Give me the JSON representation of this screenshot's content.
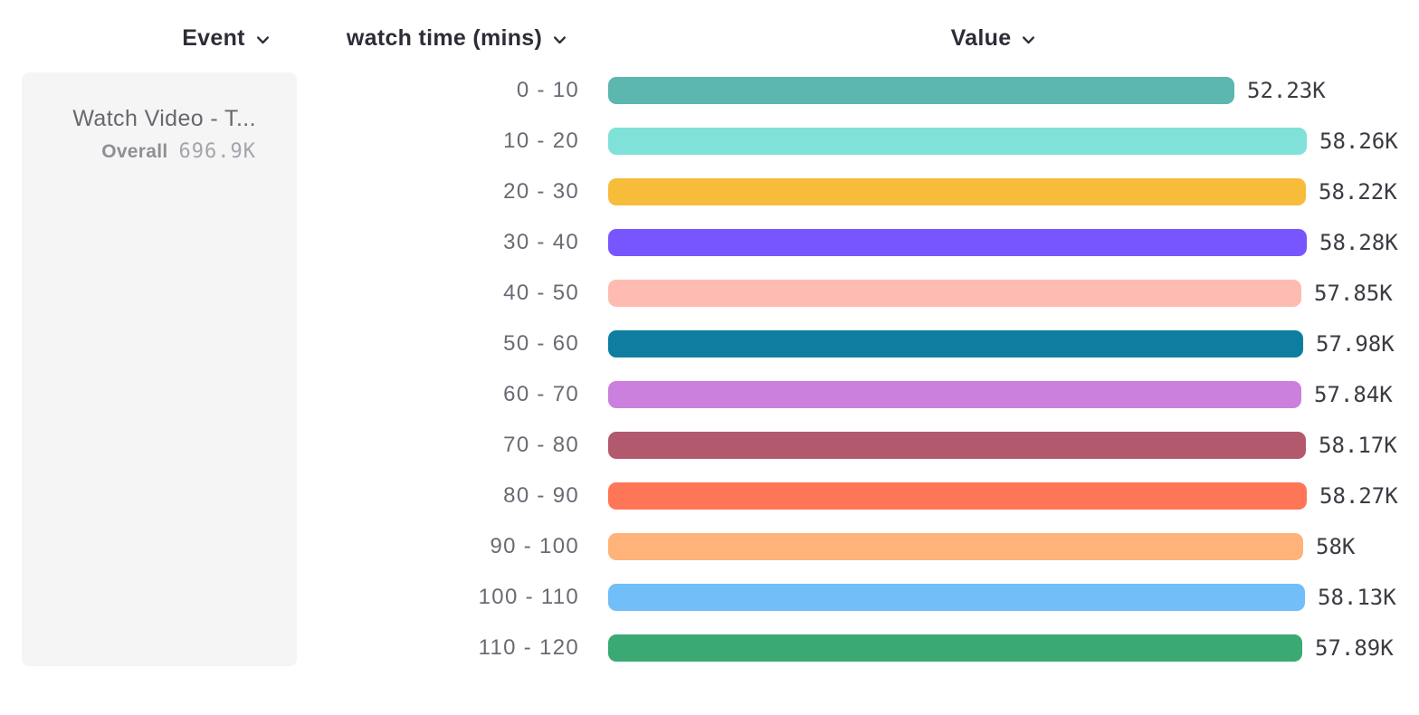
{
  "header": {
    "event": {
      "label": "Event"
    },
    "breakdown": {
      "label": "watch time (mins)"
    },
    "value": {
      "label": "Value"
    }
  },
  "event_panel": {
    "event_name": "Watch Video - T...",
    "overall_label": "Overall",
    "overall_value": "696.9K"
  },
  "chart_data": {
    "type": "bar",
    "orientation": "horizontal",
    "title": "",
    "xlabel": "Value",
    "ylabel": "watch time (mins)",
    "grid": false,
    "legend_position": "none",
    "categories": [
      "0 - 10",
      "10 - 20",
      "20 - 30",
      "30 - 40",
      "40 - 50",
      "50 - 60",
      "60 - 70",
      "70 - 80",
      "80 - 90",
      "90 - 100",
      "100 - 110",
      "110 - 120"
    ],
    "values": [
      52230,
      58260,
      58220,
      58280,
      57850,
      57980,
      57840,
      58170,
      58270,
      58000,
      58130,
      57890
    ],
    "value_labels": [
      "52.23K",
      "58.26K",
      "58.22K",
      "58.28K",
      "57.85K",
      "57.98K",
      "57.84K",
      "58.17K",
      "58.27K",
      "58K",
      "58.13K",
      "57.89K"
    ],
    "colors": [
      "#5BB7AF",
      "#80E1D9",
      "#F8BC3B",
      "#7856FF",
      "#FEBBB2",
      "#0D7EA0",
      "#CA80DC",
      "#B2596E",
      "#FF7557",
      "#FFB27A",
      "#72BEF8",
      "#3BA974"
    ],
    "xlim": [
      0,
      58280
    ]
  }
}
